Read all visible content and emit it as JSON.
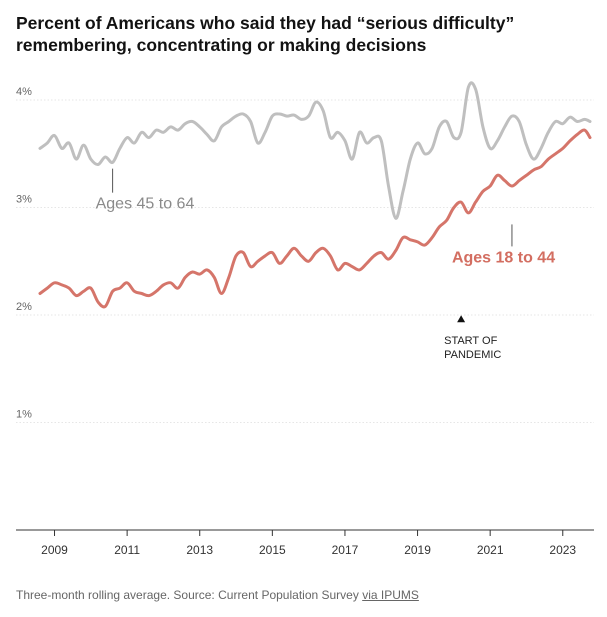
{
  "title": "Percent of Americans who said they had “serious difficulty” remembering, concentrating or making decisions",
  "footer": {
    "text": "Three-month rolling average. Source: Current Population Survey ",
    "link": "via IPUMS"
  },
  "colors": {
    "older": "#bfbfbf",
    "younger": "#d5756a",
    "older_label": "#8a8a8a",
    "younger_label": "#d36e61"
  },
  "chart_data": {
    "type": "line",
    "title": "Percent of Americans who said they had “serious difficulty” remembering, concentrating or making decisions",
    "xlabel": "",
    "ylabel": "",
    "xlim": [
      2008.6,
      2023.75
    ],
    "ylim": [
      0,
      4.1
    ],
    "y_ticks": [
      1,
      2,
      3,
      4
    ],
    "y_tick_labels": [
      "1%",
      "2%",
      "3%",
      "4%"
    ],
    "x_ticks": [
      2009,
      2011,
      2013,
      2015,
      2017,
      2019,
      2021,
      2023
    ],
    "x_tick_labels": [
      "2009",
      "2011",
      "2013",
      "2015",
      "2017",
      "2019",
      "2021",
      "2023"
    ],
    "grid": true,
    "legend": "none",
    "series": [
      {
        "name": "Ages 45 to 64",
        "color": "#bfbfbf",
        "x": [
          2008.6,
          2008.8,
          2009.0,
          2009.2,
          2009.4,
          2009.6,
          2009.8,
          2010.0,
          2010.2,
          2010.4,
          2010.6,
          2010.8,
          2011.0,
          2011.2,
          2011.4,
          2011.6,
          2011.8,
          2012.0,
          2012.2,
          2012.4,
          2012.6,
          2012.8,
          2013.0,
          2013.2,
          2013.4,
          2013.6,
          2013.8,
          2014.0,
          2014.2,
          2014.4,
          2014.6,
          2014.8,
          2015.0,
          2015.2,
          2015.4,
          2015.6,
          2015.8,
          2016.0,
          2016.2,
          2016.4,
          2016.6,
          2016.8,
          2017.0,
          2017.2,
          2017.4,
          2017.6,
          2017.8,
          2018.0,
          2018.2,
          2018.4,
          2018.6,
          2018.8,
          2019.0,
          2019.2,
          2019.4,
          2019.6,
          2019.8,
          2020.0,
          2020.2,
          2020.4,
          2020.6,
          2020.8,
          2021.0,
          2021.2,
          2021.4,
          2021.6,
          2021.8,
          2022.0,
          2022.2,
          2022.4,
          2022.6,
          2022.8,
          2023.0,
          2023.2,
          2023.4,
          2023.6,
          2023.75
        ],
        "values": [
          3.55,
          3.6,
          3.67,
          3.55,
          3.6,
          3.45,
          3.58,
          3.45,
          3.4,
          3.47,
          3.42,
          3.55,
          3.65,
          3.6,
          3.7,
          3.65,
          3.72,
          3.7,
          3.75,
          3.72,
          3.78,
          3.8,
          3.75,
          3.68,
          3.62,
          3.75,
          3.8,
          3.85,
          3.87,
          3.8,
          3.6,
          3.7,
          3.85,
          3.87,
          3.85,
          3.86,
          3.82,
          3.85,
          3.98,
          3.9,
          3.65,
          3.7,
          3.62,
          3.45,
          3.7,
          3.6,
          3.65,
          3.62,
          3.2,
          2.9,
          3.15,
          3.45,
          3.6,
          3.5,
          3.55,
          3.75,
          3.8,
          3.65,
          3.7,
          4.12,
          4.1,
          3.75,
          3.55,
          3.62,
          3.75,
          3.85,
          3.8,
          3.58,
          3.45,
          3.55,
          3.7,
          3.8,
          3.78,
          3.84,
          3.8,
          3.82,
          3.8
        ]
      },
      {
        "name": "Ages 18 to 44",
        "color": "#d5756a",
        "x": [
          2008.6,
          2008.8,
          2009.0,
          2009.2,
          2009.4,
          2009.6,
          2009.8,
          2010.0,
          2010.2,
          2010.4,
          2010.6,
          2010.8,
          2011.0,
          2011.2,
          2011.4,
          2011.6,
          2011.8,
          2012.0,
          2012.2,
          2012.4,
          2012.6,
          2012.8,
          2013.0,
          2013.2,
          2013.4,
          2013.6,
          2013.8,
          2014.0,
          2014.2,
          2014.4,
          2014.6,
          2014.8,
          2015.0,
          2015.2,
          2015.4,
          2015.6,
          2015.8,
          2016.0,
          2016.2,
          2016.4,
          2016.6,
          2016.8,
          2017.0,
          2017.2,
          2017.4,
          2017.6,
          2017.8,
          2018.0,
          2018.2,
          2018.4,
          2018.6,
          2018.8,
          2019.0,
          2019.2,
          2019.4,
          2019.6,
          2019.8,
          2020.0,
          2020.2,
          2020.4,
          2020.6,
          2020.8,
          2021.0,
          2021.2,
          2021.4,
          2021.6,
          2021.8,
          2022.0,
          2022.2,
          2022.4,
          2022.6,
          2022.8,
          2023.0,
          2023.2,
          2023.4,
          2023.6,
          2023.75
        ],
        "values": [
          2.2,
          2.25,
          2.3,
          2.28,
          2.25,
          2.18,
          2.22,
          2.25,
          2.12,
          2.08,
          2.22,
          2.25,
          2.3,
          2.22,
          2.2,
          2.18,
          2.22,
          2.28,
          2.3,
          2.25,
          2.35,
          2.4,
          2.38,
          2.42,
          2.35,
          2.2,
          2.35,
          2.55,
          2.58,
          2.45,
          2.5,
          2.55,
          2.58,
          2.48,
          2.55,
          2.62,
          2.55,
          2.5,
          2.58,
          2.62,
          2.55,
          2.42,
          2.48,
          2.45,
          2.42,
          2.48,
          2.55,
          2.58,
          2.52,
          2.6,
          2.72,
          2.7,
          2.68,
          2.65,
          2.72,
          2.82,
          2.88,
          3.0,
          3.05,
          2.95,
          3.05,
          3.15,
          3.2,
          3.3,
          3.25,
          3.2,
          3.25,
          3.3,
          3.35,
          3.38,
          3.45,
          3.5,
          3.55,
          3.62,
          3.68,
          3.72,
          3.65
        ]
      }
    ],
    "annotations": [
      {
        "text": "Ages 45 to 64",
        "x": 2010.6,
        "y": 3.38
      },
      {
        "text": "Ages 18 to 44",
        "x": 2021.6,
        "y": 2.88
      },
      {
        "text": "START OF PANDEMIC",
        "x": 2020.2,
        "y": 1.97
      }
    ]
  }
}
